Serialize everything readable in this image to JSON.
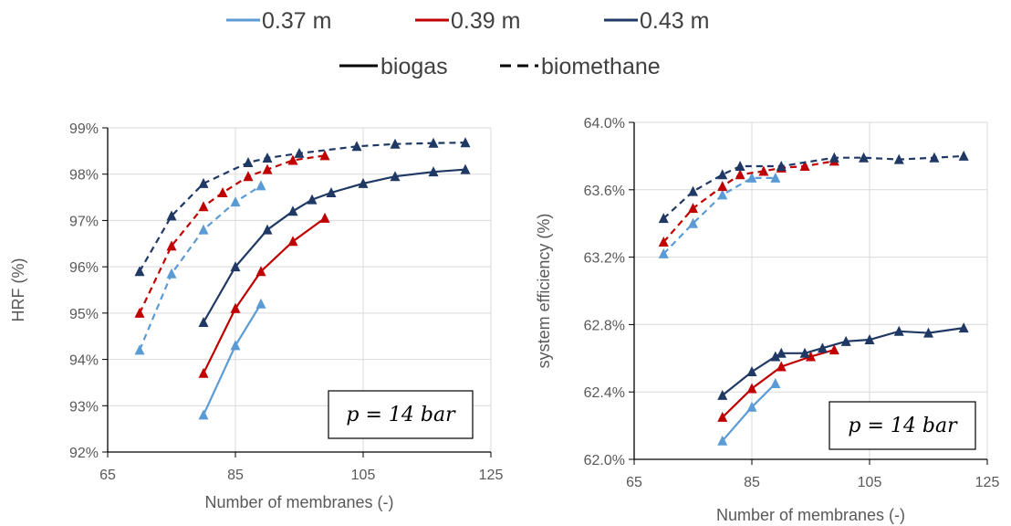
{
  "legend": {
    "series": [
      {
        "label": "0.37 m",
        "color": "#5b9bd5"
      },
      {
        "label": "0.39 m",
        "color": "#c00000"
      },
      {
        "label": "0.43 m",
        "color": "#1f3864"
      }
    ],
    "styles": [
      {
        "label": "biogas",
        "dash": "solid"
      },
      {
        "label": "biomethane",
        "dash": "dashed"
      }
    ]
  },
  "chart_data": [
    {
      "type": "line",
      "xlabel": "Number of membranes (-)",
      "ylabel": "HRF (%)",
      "annotation": "p = 14 bar",
      "xlim": [
        65,
        125
      ],
      "ylim": [
        92,
        99
      ],
      "xticks": [
        65,
        85,
        105,
        125
      ],
      "yticks": [
        92,
        93,
        94,
        95,
        96,
        97,
        98,
        99
      ],
      "yticklabels": [
        "92%",
        "93%",
        "94%",
        "95%",
        "96%",
        "97%",
        "98%",
        "99%"
      ],
      "grid": true,
      "series": [
        {
          "name": "0.37 m",
          "style": "biogas",
          "x": [
            80,
            85,
            89
          ],
          "y": [
            92.8,
            94.3,
            95.2
          ]
        },
        {
          "name": "0.39 m",
          "style": "biogas",
          "x": [
            80,
            85,
            89,
            94,
            99
          ],
          "y": [
            93.7,
            95.1,
            95.9,
            96.55,
            97.05
          ]
        },
        {
          "name": "0.43 m",
          "style": "biogas",
          "x": [
            80,
            85,
            90,
            94,
            97,
            100,
            105,
            110,
            116,
            121
          ],
          "y": [
            94.8,
            96.0,
            96.8,
            97.2,
            97.45,
            97.6,
            97.8,
            97.95,
            98.05,
            98.1
          ]
        },
        {
          "name": "0.37 m",
          "style": "biomethane",
          "x": [
            70,
            75,
            80,
            85,
            89
          ],
          "y": [
            94.2,
            95.85,
            96.8,
            97.4,
            97.75
          ]
        },
        {
          "name": "0.39 m",
          "style": "biomethane",
          "x": [
            70,
            75,
            80,
            83,
            87,
            90,
            94,
            99
          ],
          "y": [
            95.0,
            96.45,
            97.3,
            97.6,
            97.95,
            98.1,
            98.3,
            98.4
          ]
        },
        {
          "name": "0.43 m",
          "style": "biomethane",
          "x": [
            70,
            75,
            80,
            87,
            90,
            95,
            104,
            110,
            116,
            121
          ],
          "y": [
            95.9,
            97.1,
            97.8,
            98.25,
            98.35,
            98.45,
            98.6,
            98.65,
            98.67,
            98.68
          ]
        }
      ]
    },
    {
      "type": "line",
      "xlabel": "Number of membranes (-)",
      "ylabel": "system efficiency (%)",
      "annotation": "p = 14 bar",
      "xlim": [
        65,
        125
      ],
      "ylim": [
        62.0,
        64.0
      ],
      "xticks": [
        65,
        85,
        105,
        125
      ],
      "yticks": [
        62.0,
        62.4,
        62.8,
        63.2,
        63.6,
        64.0
      ],
      "yticklabels": [
        "62.0%",
        "62.4%",
        "62.8%",
        "63.2%",
        "63.6%",
        "64.0%"
      ],
      "grid": true,
      "series": [
        {
          "name": "0.37 m",
          "style": "biogas",
          "x": [
            80,
            85,
            89
          ],
          "y": [
            62.11,
            62.31,
            62.45
          ]
        },
        {
          "name": "0.39 m",
          "style": "biogas",
          "x": [
            80,
            85,
            90,
            95,
            99
          ],
          "y": [
            62.25,
            62.42,
            62.55,
            62.61,
            62.65
          ]
        },
        {
          "name": "0.43 m",
          "style": "biogas",
          "x": [
            80,
            85,
            89,
            90,
            94,
            97,
            101,
            105,
            110,
            115,
            121
          ],
          "y": [
            62.38,
            62.52,
            62.61,
            62.63,
            62.63,
            62.66,
            62.7,
            62.71,
            62.76,
            62.75,
            62.78
          ]
        },
        {
          "name": "0.37 m",
          "style": "biomethane",
          "x": [
            70,
            75,
            80,
            85,
            89
          ],
          "y": [
            63.22,
            63.4,
            63.57,
            63.67,
            63.67
          ]
        },
        {
          "name": "0.39 m",
          "style": "biomethane",
          "x": [
            70,
            75,
            80,
            83,
            87,
            90,
            94,
            99
          ],
          "y": [
            63.29,
            63.49,
            63.62,
            63.69,
            63.71,
            63.73,
            63.74,
            63.77
          ]
        },
        {
          "name": "0.43 m",
          "style": "biomethane",
          "x": [
            70,
            75,
            80,
            83,
            90,
            99,
            104,
            110,
            116,
            121
          ],
          "y": [
            63.43,
            63.59,
            63.69,
            63.74,
            63.74,
            63.79,
            63.79,
            63.78,
            63.79,
            63.8
          ]
        }
      ]
    }
  ]
}
